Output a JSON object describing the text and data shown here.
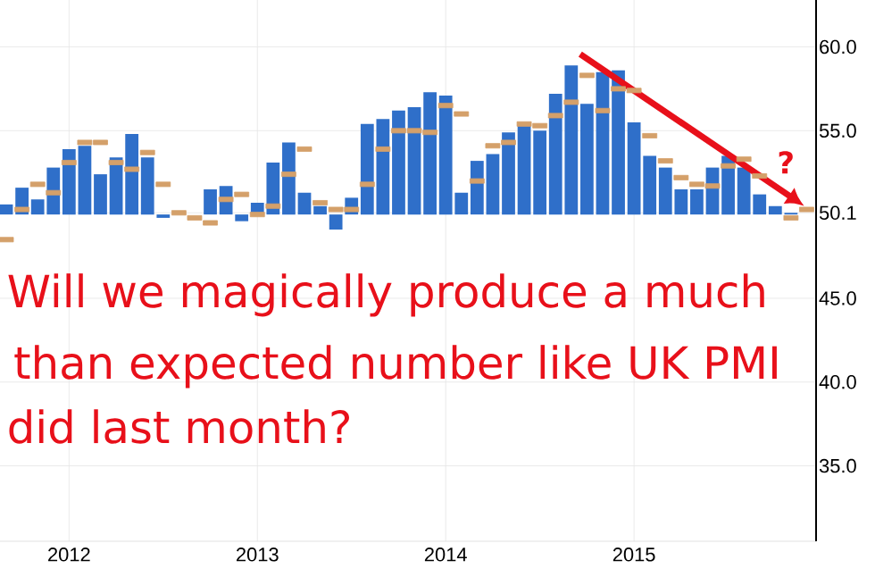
{
  "chart_data": {
    "type": "bar",
    "x": [
      "2011-09",
      "2011-10",
      "2011-11",
      "2011-12",
      "2012-01",
      "2012-02",
      "2012-03",
      "2012-04",
      "2012-05",
      "2012-06",
      "2012-07",
      "2012-08",
      "2012-09",
      "2012-10",
      "2012-11",
      "2012-12",
      "2013-01",
      "2013-02",
      "2013-03",
      "2013-04",
      "2013-05",
      "2013-06",
      "2013-07",
      "2013-08",
      "2013-09",
      "2013-10",
      "2013-11",
      "2013-12",
      "2014-01",
      "2014-02",
      "2014-03",
      "2014-04",
      "2014-05",
      "2014-06",
      "2014-07",
      "2014-08",
      "2014-09",
      "2014-10",
      "2014-11",
      "2014-12",
      "2015-01",
      "2015-02",
      "2015-03",
      "2015-04",
      "2015-05",
      "2015-06",
      "2015-07",
      "2015-08",
      "2015-09",
      "2015-10",
      "2015-11",
      "2015-12"
    ],
    "series": [
      {
        "color": "#2f6fc9",
        "base": [
          50,
          50,
          50,
          50,
          50,
          50,
          50,
          50,
          50,
          50,
          50,
          null,
          null,
          50,
          50,
          50,
          50,
          50,
          50,
          50,
          50,
          50,
          50,
          50,
          50,
          50,
          50,
          50,
          50,
          50,
          50,
          50,
          50,
          50,
          50,
          50,
          50,
          50,
          50,
          50,
          50,
          50,
          50,
          50,
          50,
          50,
          50,
          50,
          50,
          50,
          50,
          null
        ],
        "values": [
          0.6,
          1.6,
          0.9,
          2.8,
          3.9,
          4.1,
          2.4,
          3.4,
          4.8,
          3.4,
          -0.2,
          null,
          null,
          1.5,
          1.7,
          -0.4,
          0.7,
          3.1,
          4.3,
          1.3,
          0.5,
          -0.9,
          1.0,
          5.4,
          5.7,
          6.2,
          6.4,
          7.3,
          7.1,
          1.3,
          3.2,
          3.6,
          4.9,
          5.4,
          5.0,
          7.2,
          8.9,
          6.6,
          8.5,
          8.6,
          5.5,
          3.5,
          2.8,
          1.5,
          1.5,
          2.8,
          3.5,
          2.8,
          1.2,
          0.5,
          0.1,
          null
        ]
      },
      {
        "type": "scatter",
        "color": "#d4a06a",
        "marker": "square",
        "values": [
          48.5,
          50.3,
          51.8,
          51.3,
          53.1,
          54.3,
          54.3,
          53.1,
          52.7,
          53.7,
          51.8,
          50.1,
          49.8,
          49.5,
          50.9,
          51.2,
          50.0,
          50.5,
          52.4,
          53.9,
          50.7,
          50.3,
          50.3,
          51.8,
          53.9,
          55.0,
          55.0,
          54.9,
          56.5,
          56.0,
          52.0,
          54.1,
          54.3,
          55.4,
          55.3,
          55.9,
          56.7,
          58.3,
          56.2,
          57.5,
          57.4,
          54.7,
          53.2,
          52.2,
          51.8,
          51.7,
          52.9,
          53.3,
          52.3,
          null,
          49.8,
          50.3
        ]
      }
    ],
    "xlim": [
      "2011-08-19",
      "2015-12-19"
    ],
    "xticks": [
      "2012",
      "2013",
      "2014",
      "2015"
    ],
    "ylim": [
      30.5,
      62.8
    ],
    "yticks": [
      {
        "value": 35,
        "label": "35.0"
      },
      {
        "value": 40,
        "label": "40.0"
      },
      {
        "value": 45,
        "label": "45.0"
      },
      {
        "value": 50.1,
        "label": "50.1"
      },
      {
        "value": 55,
        "label": "55.0"
      },
      {
        "value": 60,
        "label": "60.0"
      }
    ],
    "grid": true,
    "annotations": [
      "Will we magically produce a much",
      "than expected number like UK PMI",
      "did last month?",
      "?"
    ]
  }
}
